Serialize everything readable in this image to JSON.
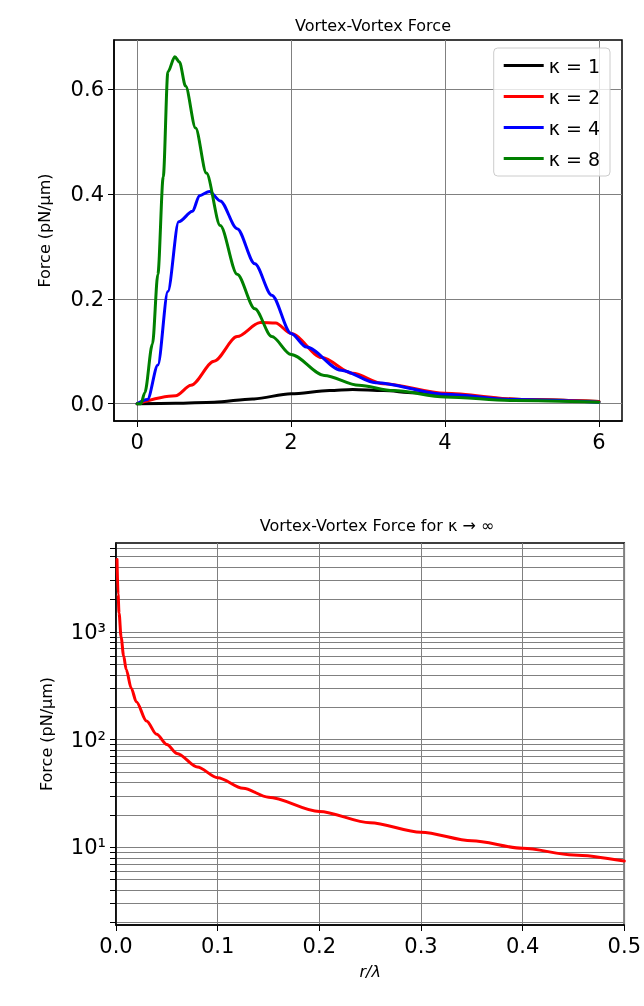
{
  "chart_data": [
    {
      "type": "line",
      "title": "Vortex-Vortex Force",
      "ylabel": "Force (pN/μm)",
      "xlim": [
        -0.3,
        6.3
      ],
      "xticks": [
        0,
        2,
        4,
        6
      ],
      "ylim": [
        -0.033,
        0.694
      ],
      "yticks": [
        {
          "value": 0,
          "label": "0.0"
        },
        0.2,
        0.4,
        0.6
      ],
      "grid": true,
      "legend": "top right",
      "marker": "none",
      "line_style": "solid",
      "series": [
        {
          "name": "κ = 1",
          "color": "#000000",
          "x": [
            0,
            0.5,
            1,
            1.5,
            2,
            2.5,
            2.8,
            3.2,
            3.6,
            4,
            5,
            6
          ],
          "values": [
            0,
            0.001,
            0.003,
            0.009,
            0.019,
            0.025,
            0.027,
            0.025,
            0.021,
            0.016,
            0.008,
            0.004
          ]
        },
        {
          "name": "κ = 2",
          "color": "#ff0000",
          "x": [
            0,
            0.5,
            0.7,
            1,
            1.3,
            1.6,
            1.8,
            2,
            2.4,
            2.8,
            3.2,
            4,
            5,
            6
          ],
          "values": [
            0,
            0.015,
            0.035,
            0.081,
            0.128,
            0.155,
            0.154,
            0.134,
            0.088,
            0.058,
            0.038,
            0.02,
            0.008,
            0.004
          ]
        },
        {
          "name": "κ = 4",
          "color": "#0000ff",
          "x": [
            0,
            0.135,
            0.27,
            0.4,
            0.54,
            0.72,
            0.81,
            0.94,
            1.08,
            1.3,
            1.53,
            1.75,
            2,
            2.2,
            2.65,
            3.1,
            4,
            4.9,
            6
          ],
          "values": [
            0,
            0.008,
            0.074,
            0.214,
            0.347,
            0.367,
            0.397,
            0.405,
            0.387,
            0.334,
            0.267,
            0.207,
            0.134,
            0.108,
            0.064,
            0.04,
            0.018,
            0.008,
            0.003
          ]
        },
        {
          "name": "κ = 8",
          "color": "#008000",
          "x": [
            0,
            0.05,
            0.1,
            0.2,
            0.27,
            0.34,
            0.4,
            0.49,
            0.55,
            0.63,
            0.76,
            0.9,
            1.08,
            1.3,
            1.53,
            1.75,
            2,
            2.43,
            2.88,
            3.33,
            4,
            4.9,
            6
          ],
          "values": [
            0,
            0,
            0.021,
            0.114,
            0.247,
            0.433,
            0.633,
            0.662,
            0.652,
            0.606,
            0.526,
            0.44,
            0.34,
            0.247,
            0.181,
            0.128,
            0.094,
            0.054,
            0.035,
            0.025,
            0.013,
            0.006,
            0.003
          ]
        }
      ]
    },
    {
      "type": "line",
      "title": "Vortex-Vortex Force for κ → ∞",
      "xlabel": "r/λ",
      "ylabel": "Force (pN/μm)",
      "log": "y",
      "xlim": [
        0,
        0.5
      ],
      "xticks": [
        {
          "value": 0,
          "label": "0.0"
        },
        0.1,
        0.2,
        0.3,
        0.4,
        0.5
      ],
      "ylim": [
        1.9,
        6700
      ],
      "yticks": [
        {
          "value": 2,
          "label": null
        },
        {
          "value": 3,
          "label": null
        },
        {
          "value": 4,
          "label": null
        },
        {
          "value": 5,
          "label": null
        },
        {
          "value": 6,
          "label": null
        },
        {
          "value": 7,
          "label": null
        },
        {
          "value": 8,
          "label": null
        },
        {
          "value": 9,
          "label": null
        },
        {
          "value": 10,
          "label": "10¹"
        },
        {
          "value": 20,
          "label": null
        },
        {
          "value": 30,
          "label": null
        },
        {
          "value": 40,
          "label": null
        },
        {
          "value": 50,
          "label": null
        },
        {
          "value": 60,
          "label": null
        },
        {
          "value": 70,
          "label": null
        },
        {
          "value": 80,
          "label": null
        },
        {
          "value": 90,
          "label": null
        },
        {
          "value": 100,
          "label": "10²"
        },
        {
          "value": 200,
          "label": null
        },
        {
          "value": 300,
          "label": null
        },
        {
          "value": 400,
          "label": null
        },
        {
          "value": 500,
          "label": null
        },
        {
          "value": 600,
          "label": null
        },
        {
          "value": 700,
          "label": null
        },
        {
          "value": 800,
          "label": null
        },
        {
          "value": 900,
          "label": null
        },
        {
          "value": 1000,
          "label": "10³"
        },
        {
          "value": 2000,
          "label": null
        },
        {
          "value": 3000,
          "label": null
        },
        {
          "value": 4000,
          "label": null
        },
        {
          "value": 5000,
          "label": null
        },
        {
          "value": 6000,
          "label": null
        }
      ],
      "grid": true,
      "marker": "none",
      "line_style": "solid",
      "series": [
        {
          "color": "#ff0000",
          "x": [
            0.001,
            0.002,
            0.003,
            0.005,
            0.0075,
            0.01,
            0.015,
            0.02,
            0.03,
            0.04,
            0.05,
            0.06,
            0.08,
            0.1,
            0.125,
            0.15,
            0.2,
            0.25,
            0.3,
            0.35,
            0.4,
            0.45,
            0.5
          ],
          "values": [
            4700,
            2250,
            1500,
            900,
            600,
            450,
            300,
            225,
            149,
            112,
            90,
            74.5,
            55.8,
            44.3,
            35.3,
            29.2,
            21.5,
            16.9,
            13.8,
            11.5,
            9.8,
            8.5,
            7.45
          ]
        }
      ]
    }
  ]
}
